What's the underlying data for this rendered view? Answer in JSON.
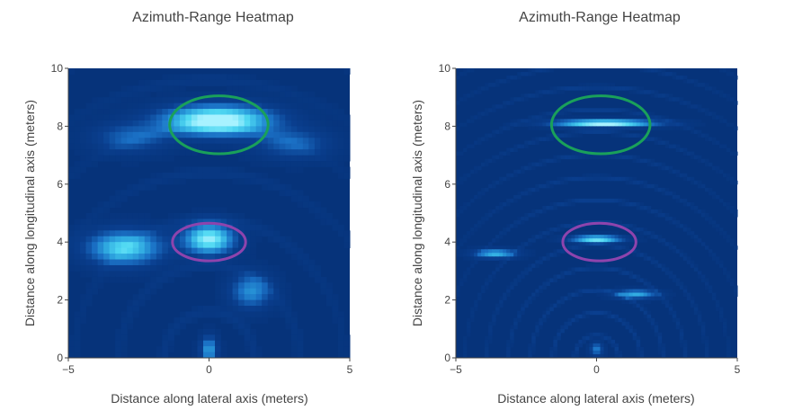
{
  "chart_data": [
    {
      "type": "heatmap",
      "title": "Azimuth-Range Heatmap",
      "xlabel": "Distance along lateral axis (meters)",
      "ylabel": "Distance along longitudinal axis (meters)",
      "xlim": [
        -5,
        5
      ],
      "ylim": [
        0,
        10
      ],
      "xticks": [
        "−5",
        "0",
        "5"
      ],
      "yticks": [
        "0",
        "2",
        "4",
        "6",
        "8",
        "10"
      ],
      "colorscale": [
        "#06337a",
        "#0a3f8f",
        "#1a6fc4",
        "#2ea7e0",
        "#4fd8f2",
        "#a8f2ff"
      ],
      "resolution": "low",
      "hotspots": [
        {
          "x": 0.3,
          "y": 8.2,
          "sx": 1.3,
          "sy": 0.35,
          "amp": 1.0
        },
        {
          "x": 0.0,
          "y": 4.1,
          "sx": 0.6,
          "sy": 0.35,
          "amp": 0.85
        },
        {
          "x": -3.0,
          "y": 3.8,
          "sx": 0.9,
          "sy": 0.4,
          "amp": 0.7
        },
        {
          "x": 1.5,
          "y": 2.3,
          "sx": 0.5,
          "sy": 0.4,
          "amp": 0.45
        },
        {
          "x": -2.8,
          "y": 7.6,
          "sx": 0.9,
          "sy": 0.35,
          "amp": 0.3
        },
        {
          "x": 3.0,
          "y": 7.4,
          "sx": 0.9,
          "sy": 0.35,
          "amp": 0.3
        },
        {
          "x": 0.0,
          "y": 0.3,
          "sx": 0.2,
          "sy": 0.3,
          "amp": 0.5
        }
      ],
      "annotations": [
        {
          "shape": "ellipse",
          "color": "#1aa05a",
          "cx": 0.35,
          "cy": 8.05,
          "rx": 1.75,
          "ry": 1.0
        },
        {
          "shape": "ellipse",
          "color": "#8e44ad",
          "cx": 0.0,
          "cy": 4.0,
          "rx": 1.3,
          "ry": 0.65
        }
      ]
    },
    {
      "type": "heatmap",
      "title": "Azimuth-Range Heatmap",
      "xlabel": "Distance along lateral axis (meters)",
      "ylabel": "Distance along longitudinal axis (meters)",
      "xlim": [
        -5,
        5
      ],
      "ylim": [
        0,
        10
      ],
      "xticks": [
        "−5",
        "0",
        "5"
      ],
      "yticks": [
        "0",
        "2",
        "4",
        "6",
        "8",
        "10"
      ],
      "colorscale": [
        "#06337a",
        "#0a3f8f",
        "#1a6fc4",
        "#2ea7e0",
        "#4fd8f2",
        "#a8f2ff"
      ],
      "resolution": "high",
      "hotspots": [
        {
          "x": 0.3,
          "y": 8.1,
          "sx": 1.2,
          "sy": 0.08,
          "amp": 1.0
        },
        {
          "x": 0.0,
          "y": 4.1,
          "sx": 0.6,
          "sy": 0.08,
          "amp": 0.85
        },
        {
          "x": -3.6,
          "y": 3.6,
          "sx": 0.5,
          "sy": 0.1,
          "amp": 0.6
        },
        {
          "x": 1.4,
          "y": 2.2,
          "sx": 0.5,
          "sy": 0.1,
          "amp": 0.55
        },
        {
          "x": 0.0,
          "y": 0.3,
          "sx": 0.15,
          "sy": 0.15,
          "amp": 0.4
        }
      ],
      "annotations": [
        {
          "shape": "ellipse",
          "color": "#1aa05a",
          "cx": 0.15,
          "cy": 8.05,
          "rx": 1.75,
          "ry": 1.0
        },
        {
          "shape": "ellipse",
          "color": "#8e44ad",
          "cx": 0.1,
          "cy": 4.0,
          "rx": 1.3,
          "ry": 0.65
        }
      ]
    }
  ]
}
